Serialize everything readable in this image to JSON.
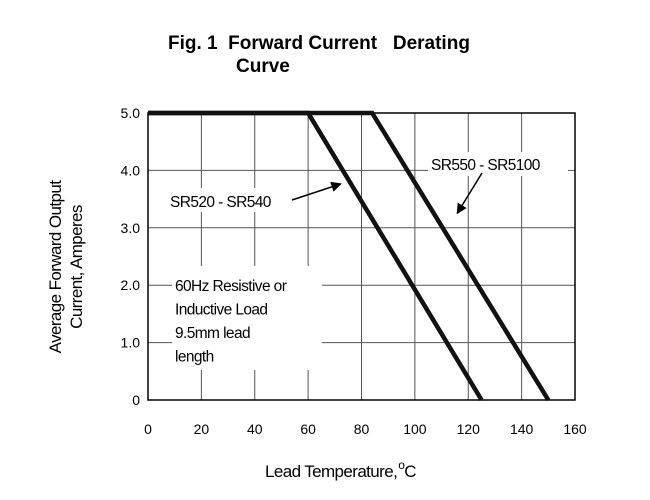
{
  "chart_data": {
    "type": "line",
    "title_line1": "Fig. 1  Forward Current   Derating",
    "title_line2": "Curve",
    "ylabel_line1": "Average Forward Output",
    "ylabel_line2": "Current, Amperes",
    "xlabel": "Lead Temperature,",
    "xlabel_unit_deg": "o",
    "xlabel_unit": "C",
    "xlim": [
      0,
      160
    ],
    "ylim": [
      0,
      5.0
    ],
    "grid": true,
    "xticks": [
      "0",
      "20",
      "40",
      "60",
      "80",
      "100",
      "120",
      "140",
      "160"
    ],
    "yticks": [
      "0",
      "1.0",
      "2.0",
      "3.0",
      "4.0",
      "5.0"
    ],
    "series": [
      {
        "name": "SR520 - SR540",
        "x": [
          0,
          60,
          125
        ],
        "y": [
          5.0,
          5.0,
          0
        ]
      },
      {
        "name": "SR550 - SR5100",
        "x": [
          0,
          84,
          150
        ],
        "y": [
          5.0,
          5.0,
          0
        ]
      }
    ],
    "annotations": [
      {
        "text": "SR520 - SR540"
      },
      {
        "text": "SR550 - SR5100"
      },
      {
        "lines": [
          "60Hz Resistive or",
          "Inductive Load",
          "9.5mm lead",
          "length"
        ]
      }
    ]
  }
}
